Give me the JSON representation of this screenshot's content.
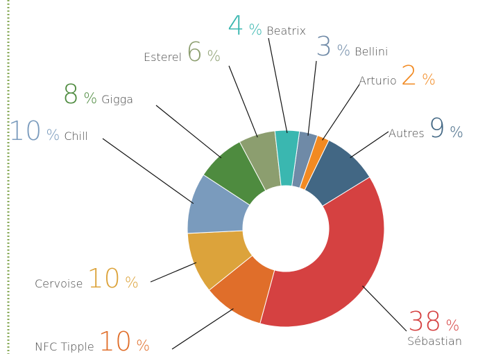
{
  "chart_data": {
    "type": "donut",
    "unit": "%",
    "series": [
      {
        "name": "Bellini",
        "color": "#6f8aa7",
        "values": [
          3
        ]
      },
      {
        "name": "Arturio",
        "color": "#f28a22",
        "values": [
          2
        ]
      },
      {
        "name": "Autres",
        "color": "#426784",
        "values": [
          9
        ]
      },
      {
        "name": "Sébastian",
        "color": "#d54141",
        "values": [
          38
        ]
      },
      {
        "name": "NFC Tipple",
        "color": "#e06e2a",
        "values": [
          10
        ]
      },
      {
        "name": "Cervoise",
        "color": "#dca33b",
        "values": [
          10
        ]
      },
      {
        "name": "Chill",
        "color": "#7a9bbd",
        "values": [
          10
        ]
      },
      {
        "name": "Gigga",
        "color": "#4e8b3f",
        "values": [
          8
        ]
      },
      {
        "name": "Esterel",
        "color": "#8c9e6f",
        "values": [
          6
        ]
      },
      {
        "name": "Beatrix",
        "color": "#3ab7b0",
        "values": [
          4
        ]
      }
    ]
  }
}
